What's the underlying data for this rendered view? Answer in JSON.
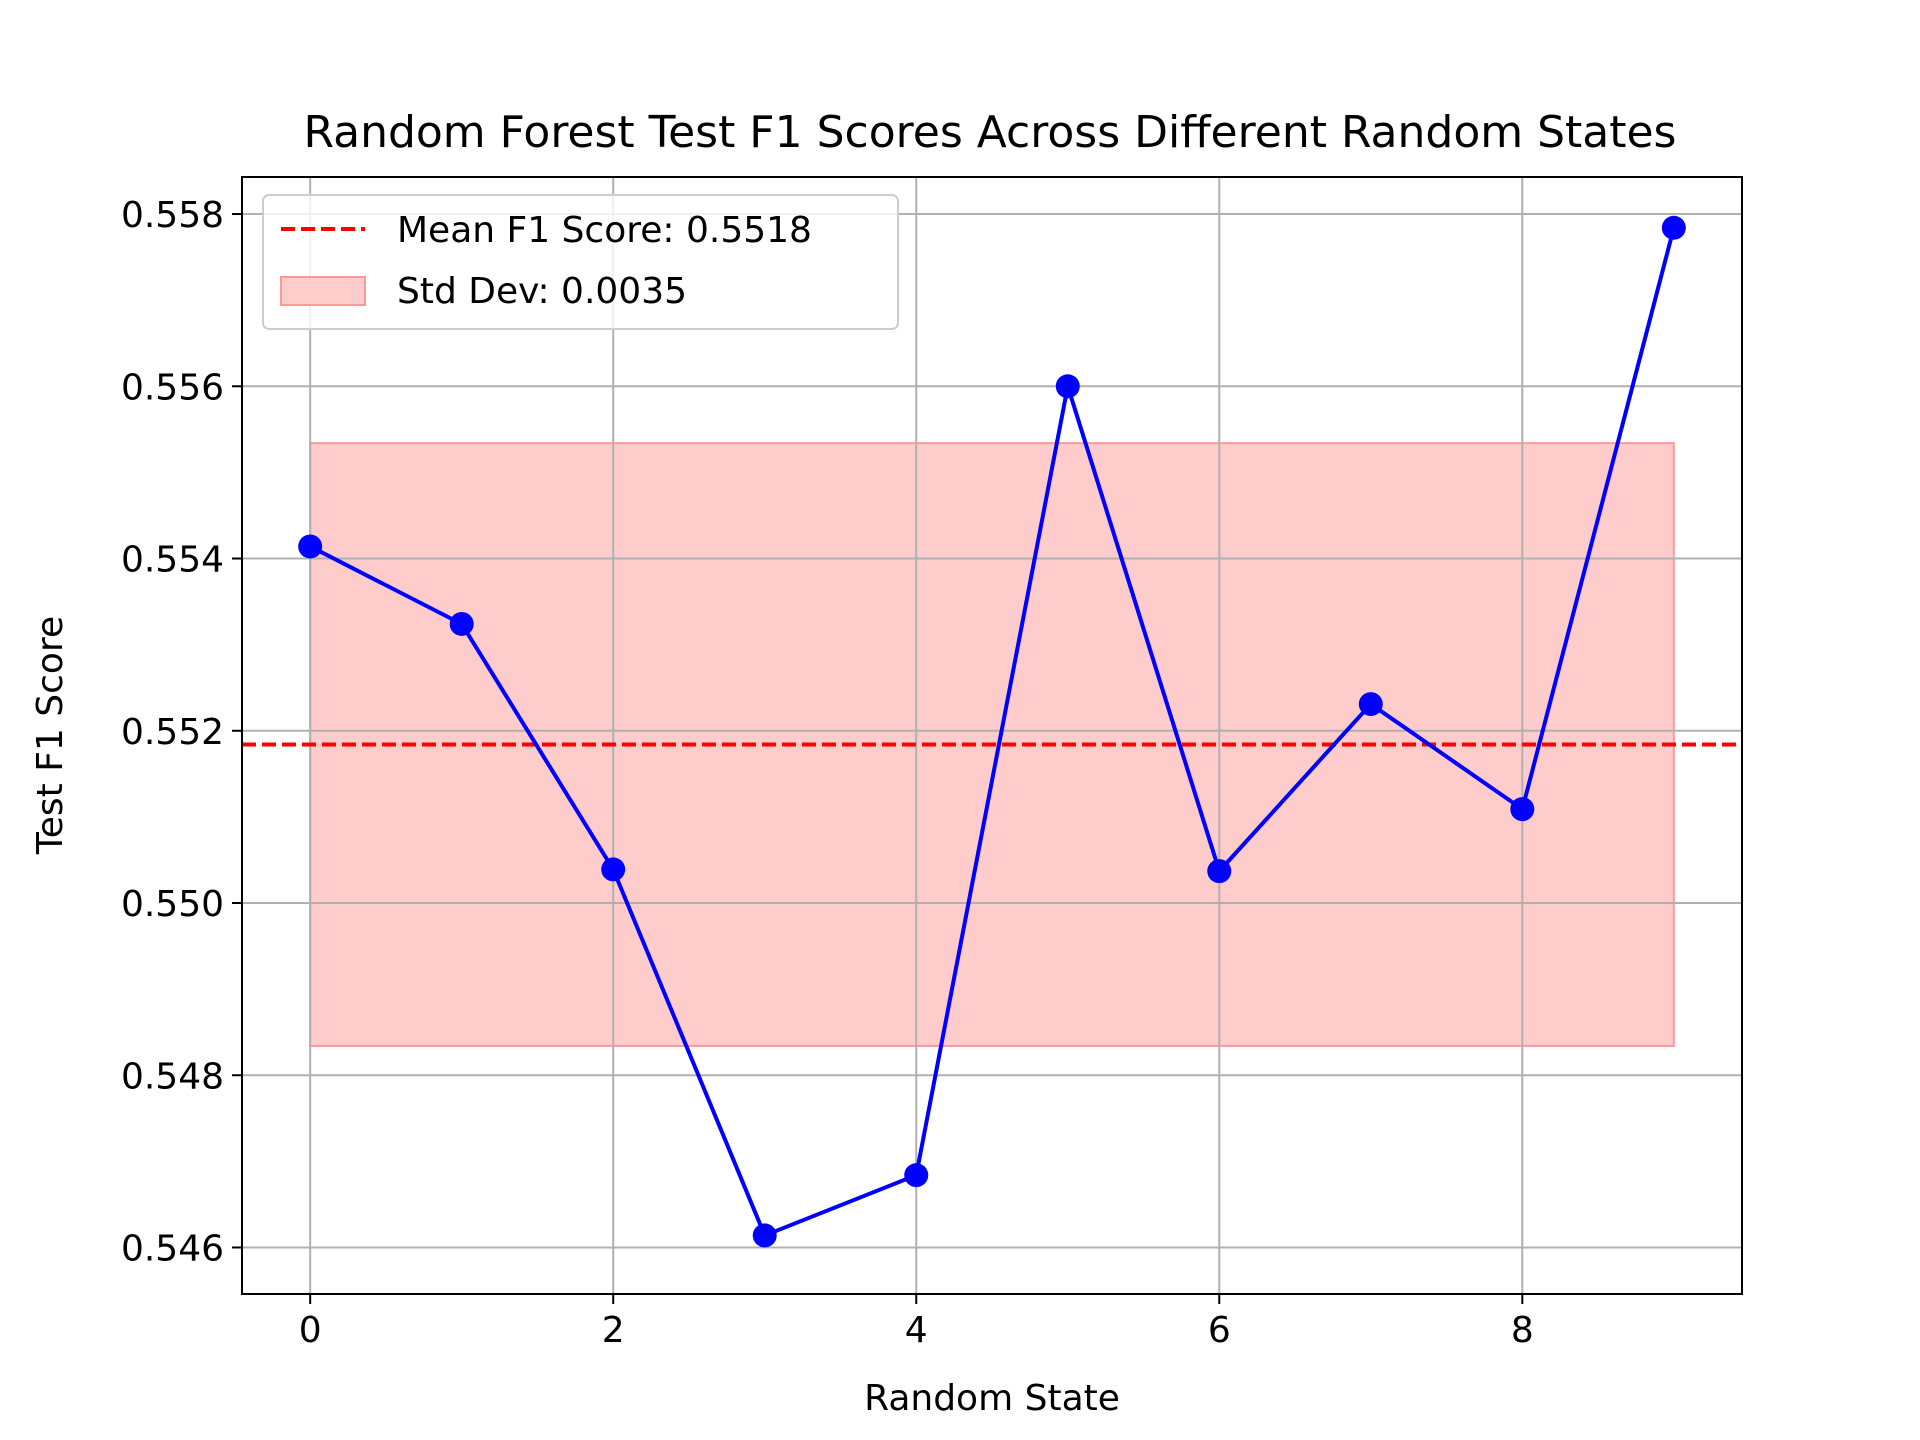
{
  "chart_data": {
    "type": "line",
    "title": "Random Forest Test F1 Scores Across Different Random States",
    "xlabel": "Random State",
    "ylabel": "Test F1 Score",
    "x": [
      0,
      1,
      2,
      3,
      4,
      5,
      6,
      7,
      8,
      9
    ],
    "values": [
      0.55414,
      0.55324,
      0.55039,
      0.54614,
      0.54684,
      0.556,
      0.55037,
      0.55231,
      0.55109,
      0.55784
    ],
    "xlim": [
      -0.45,
      9.45
    ],
    "ylim": [
      0.54546,
      0.55843
    ],
    "xticks": [
      "0",
      "2",
      "4",
      "6",
      "8"
    ],
    "xtick_values": [
      0,
      2,
      4,
      6,
      8
    ],
    "yticks": [
      "0.546",
      "0.548",
      "0.550",
      "0.552",
      "0.554",
      "0.556",
      "0.558"
    ],
    "ytick_values": [
      0.546,
      0.548,
      0.55,
      0.552,
      0.554,
      0.556,
      0.558
    ],
    "mean": 0.55184,
    "std": 0.0035,
    "band": {
      "x_start": 0,
      "x_end": 9,
      "y_low": 0.54834,
      "y_high": 0.55534
    },
    "legend": {
      "placement": "upper-left",
      "entries": [
        "Mean F1 Score: 0.5518",
        "Std Dev: 0.0035"
      ]
    },
    "grid": true,
    "colors": {
      "line": "#0000ff",
      "marker": "#0000ff",
      "mean_line": "#ff0000",
      "band_fill": "#ffcccc",
      "band_edge": "#ff9999",
      "grid": "#b0b0b0"
    }
  }
}
